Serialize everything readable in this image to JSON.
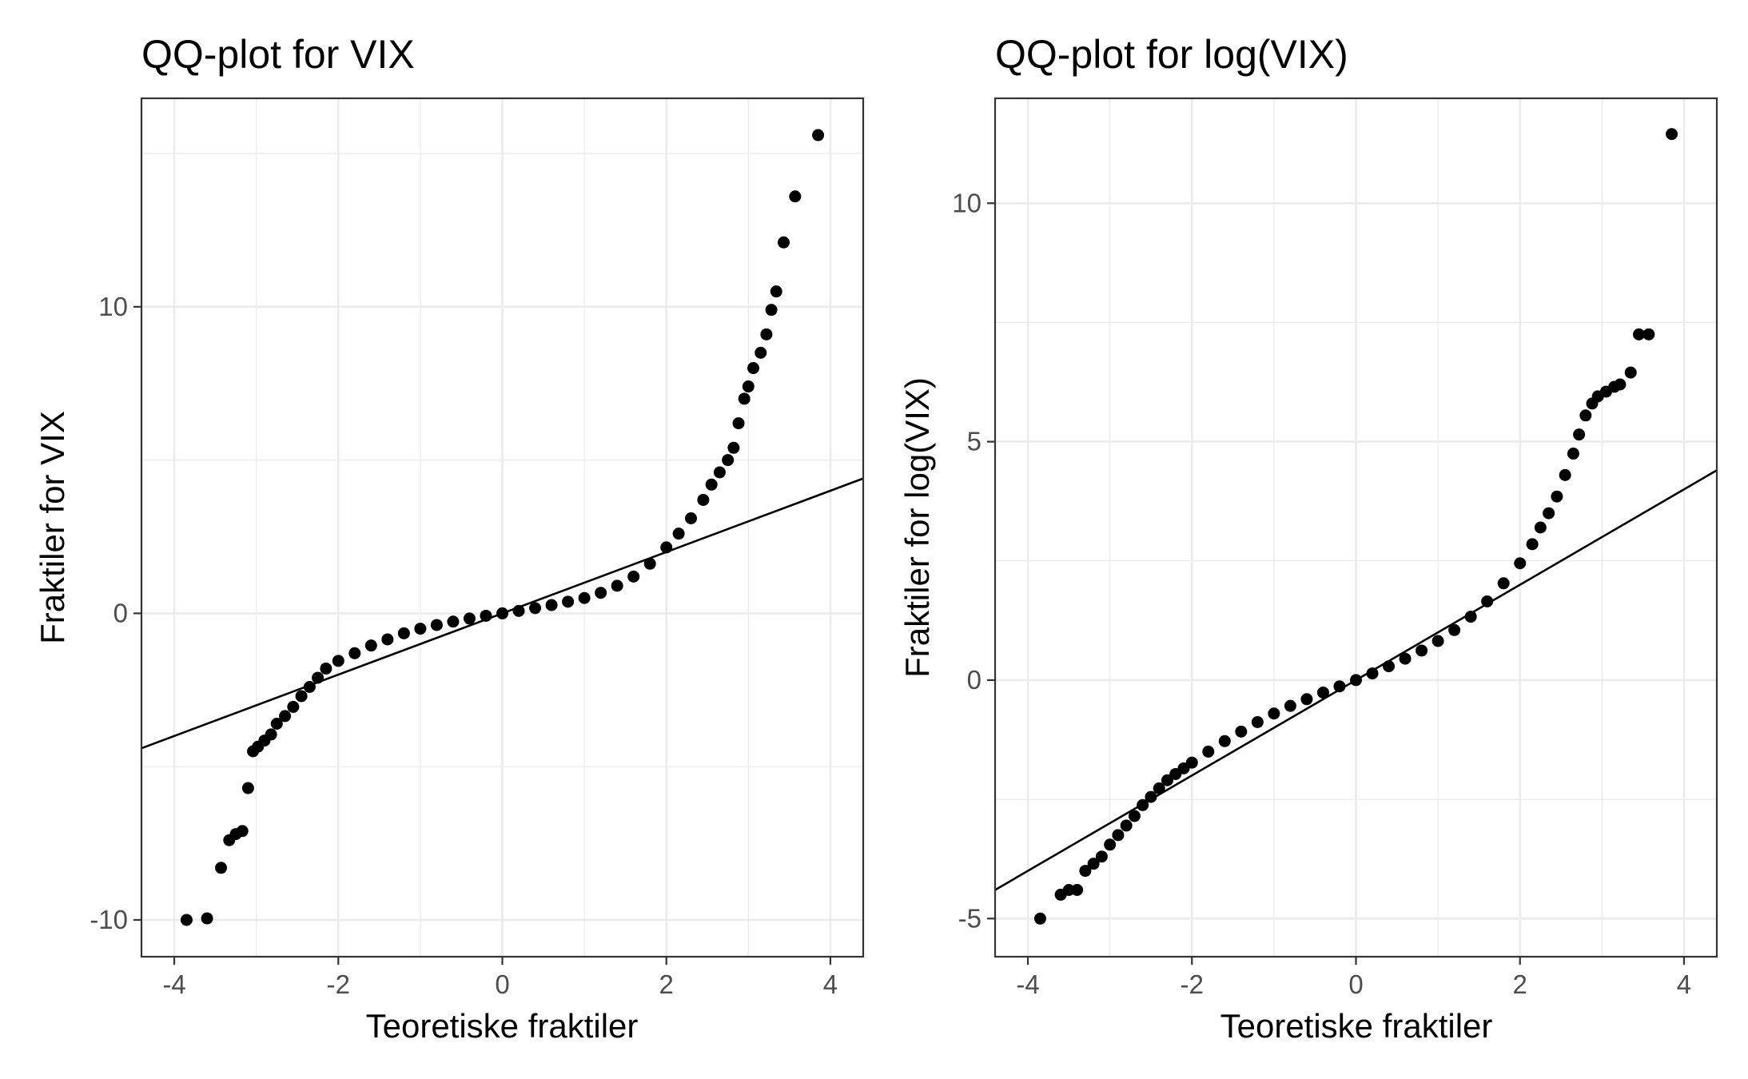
{
  "chart_data": [
    {
      "type": "scatter",
      "title": "QQ-plot for VIX",
      "xlabel": "Teoretiske fraktiler",
      "ylabel": "Fraktiler for VIX",
      "xlim": [
        -4.4,
        4.4
      ],
      "ylim": [
        -11.2,
        16.8
      ],
      "x_ticks": [
        -4,
        -2,
        0,
        2,
        4
      ],
      "x_tick_labels": [
        "-4",
        "-2",
        "0",
        "2",
        "4"
      ],
      "y_ticks": [
        -10,
        0,
        10
      ],
      "y_tick_labels": [
        "-10",
        "0",
        "10"
      ],
      "grid": true,
      "legend": "none",
      "reference_line": {
        "x": [
          -4.4,
          4.4
        ],
        "y": [
          -4.4,
          4.4
        ]
      },
      "series": [
        {
          "points": [
            [
              -3.85,
              -10.0
            ],
            [
              -3.6,
              -9.95
            ],
            [
              -3.43,
              -8.3
            ],
            [
              -3.33,
              -7.4
            ],
            [
              -3.25,
              -7.2
            ],
            [
              -3.17,
              -7.1
            ],
            [
              -3.1,
              -5.7
            ],
            [
              -3.04,
              -4.5
            ],
            [
              -2.98,
              -4.35
            ],
            [
              -2.9,
              -4.15
            ],
            [
              -2.82,
              -3.95
            ],
            [
              -2.75,
              -3.6
            ],
            [
              -2.65,
              -3.35
            ],
            [
              -2.55,
              -3.05
            ],
            [
              -2.45,
              -2.7
            ],
            [
              -2.35,
              -2.4
            ],
            [
              -2.25,
              -2.1
            ],
            [
              -2.15,
              -1.8
            ],
            [
              -2.0,
              -1.55
            ],
            [
              -1.8,
              -1.3
            ],
            [
              -1.6,
              -1.05
            ],
            [
              -1.4,
              -0.85
            ],
            [
              -1.2,
              -0.65
            ],
            [
              -1.0,
              -0.5
            ],
            [
              -0.8,
              -0.38
            ],
            [
              -0.6,
              -0.27
            ],
            [
              -0.4,
              -0.17
            ],
            [
              -0.2,
              -0.08
            ],
            [
              0.0,
              0.0
            ],
            [
              0.2,
              0.08
            ],
            [
              0.4,
              0.17
            ],
            [
              0.6,
              0.27
            ],
            [
              0.8,
              0.38
            ],
            [
              1.0,
              0.5
            ],
            [
              1.2,
              0.67
            ],
            [
              1.4,
              0.9
            ],
            [
              1.6,
              1.2
            ],
            [
              1.8,
              1.62
            ],
            [
              2.0,
              2.15
            ],
            [
              2.15,
              2.6
            ],
            [
              2.3,
              3.1
            ],
            [
              2.45,
              3.7
            ],
            [
              2.55,
              4.2
            ],
            [
              2.65,
              4.6
            ],
            [
              2.75,
              5.0
            ],
            [
              2.82,
              5.4
            ],
            [
              2.88,
              6.2
            ],
            [
              2.95,
              7.0
            ],
            [
              3.0,
              7.4
            ],
            [
              3.06,
              8.0
            ],
            [
              3.15,
              8.5
            ],
            [
              3.22,
              9.1
            ],
            [
              3.28,
              9.9
            ],
            [
              3.34,
              10.5
            ],
            [
              3.43,
              12.1
            ],
            [
              3.57,
              13.6
            ],
            [
              3.85,
              15.6
            ]
          ]
        }
      ]
    },
    {
      "type": "scatter",
      "title": "QQ-plot for log(VIX)",
      "xlabel": "Teoretiske fraktiler",
      "ylabel": "Fraktiler for log(VIX)",
      "xlim": [
        -4.4,
        4.4
      ],
      "ylim": [
        -5.8,
        12.2
      ],
      "x_ticks": [
        -4,
        -2,
        0,
        2,
        4
      ],
      "x_tick_labels": [
        "-4",
        "-2",
        "0",
        "2",
        "4"
      ],
      "y_ticks": [
        -5,
        0,
        5,
        10
      ],
      "y_tick_labels": [
        "-5",
        "0",
        "5",
        "10"
      ],
      "grid": true,
      "legend": "none",
      "reference_line": {
        "x": [
          -4.4,
          4.4
        ],
        "y": [
          -4.4,
          4.4
        ]
      },
      "series": [
        {
          "points": [
            [
              -3.85,
              -5.0
            ],
            [
              -3.6,
              -4.5
            ],
            [
              -3.5,
              -4.4
            ],
            [
              -3.4,
              -4.4
            ],
            [
              -3.3,
              -4.0
            ],
            [
              -3.2,
              -3.85
            ],
            [
              -3.1,
              -3.7
            ],
            [
              -3.0,
              -3.45
            ],
            [
              -2.9,
              -3.25
            ],
            [
              -2.8,
              -3.05
            ],
            [
              -2.7,
              -2.85
            ],
            [
              -2.6,
              -2.62
            ],
            [
              -2.5,
              -2.45
            ],
            [
              -2.4,
              -2.27
            ],
            [
              -2.3,
              -2.1
            ],
            [
              -2.2,
              -1.97
            ],
            [
              -2.1,
              -1.85
            ],
            [
              -2.0,
              -1.73
            ],
            [
              -1.8,
              -1.5
            ],
            [
              -1.6,
              -1.28
            ],
            [
              -1.4,
              -1.08
            ],
            [
              -1.2,
              -0.88
            ],
            [
              -1.0,
              -0.7
            ],
            [
              -0.8,
              -0.54
            ],
            [
              -0.6,
              -0.4
            ],
            [
              -0.4,
              -0.26
            ],
            [
              -0.2,
              -0.13
            ],
            [
              0.0,
              0.0
            ],
            [
              0.2,
              0.14
            ],
            [
              0.4,
              0.29
            ],
            [
              0.6,
              0.45
            ],
            [
              0.8,
              0.62
            ],
            [
              1.0,
              0.82
            ],
            [
              1.2,
              1.05
            ],
            [
              1.4,
              1.33
            ],
            [
              1.6,
              1.65
            ],
            [
              1.8,
              2.03
            ],
            [
              2.0,
              2.45
            ],
            [
              2.15,
              2.85
            ],
            [
              2.25,
              3.2
            ],
            [
              2.35,
              3.5
            ],
            [
              2.45,
              3.85
            ],
            [
              2.55,
              4.3
            ],
            [
              2.65,
              4.75
            ],
            [
              2.72,
              5.15
            ],
            [
              2.8,
              5.55
            ],
            [
              2.88,
              5.8
            ],
            [
              2.95,
              5.95
            ],
            [
              3.05,
              6.05
            ],
            [
              3.15,
              6.15
            ],
            [
              3.22,
              6.2
            ],
            [
              3.35,
              6.45
            ],
            [
              3.45,
              7.25
            ],
            [
              3.57,
              7.25
            ],
            [
              3.85,
              11.45
            ]
          ]
        }
      ]
    }
  ]
}
